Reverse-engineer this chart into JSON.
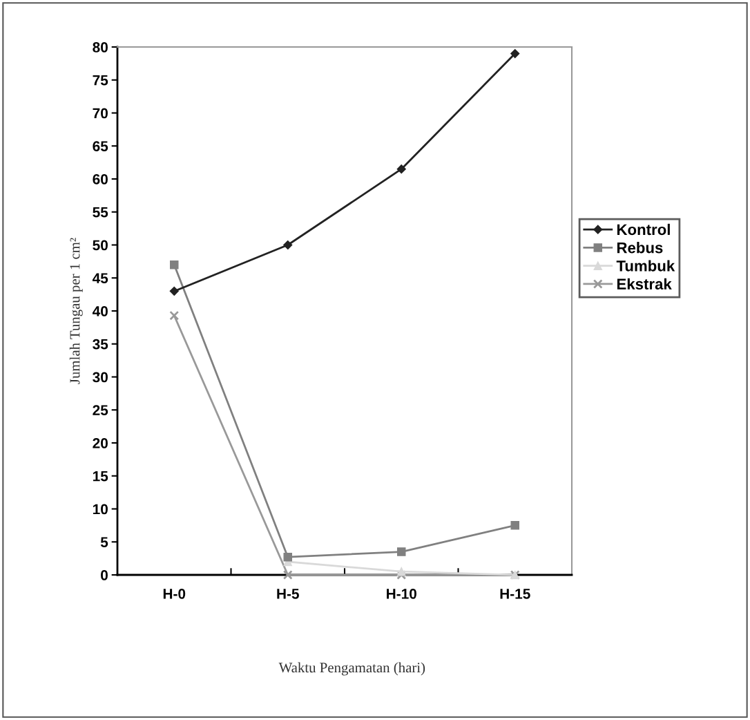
{
  "chart_data": {
    "type": "line",
    "xlabel": "Waktu Pengamatan (hari)",
    "ylabel": "Jumlah Tungau per 1 cm²",
    "categories": [
      "H-0",
      "H-5",
      "H-10",
      "H-15"
    ],
    "series": [
      {
        "name": "Kontrol",
        "color": "#222222",
        "marker": "diamond",
        "values": [
          43,
          50,
          61.5,
          79
        ]
      },
      {
        "name": "Rebus",
        "color": "#808080",
        "marker": "square",
        "values": [
          47,
          2.7,
          3.5,
          7.5
        ]
      },
      {
        "name": "Tumbuk",
        "color": "#d9d9d9",
        "marker": "triangle",
        "values": [
          null,
          2,
          0.5,
          0
        ]
      },
      {
        "name": "Ekstrak",
        "color": "#999999",
        "marker": "cross",
        "values": [
          39.3,
          0,
          0,
          0
        ]
      }
    ],
    "ylim": [
      0,
      80
    ],
    "yticks": [
      0,
      5,
      10,
      15,
      20,
      25,
      30,
      35,
      40,
      45,
      50,
      55,
      60,
      65,
      70,
      75,
      80
    ],
    "grid": false,
    "legend": "right",
    "line_style": "solid"
  }
}
